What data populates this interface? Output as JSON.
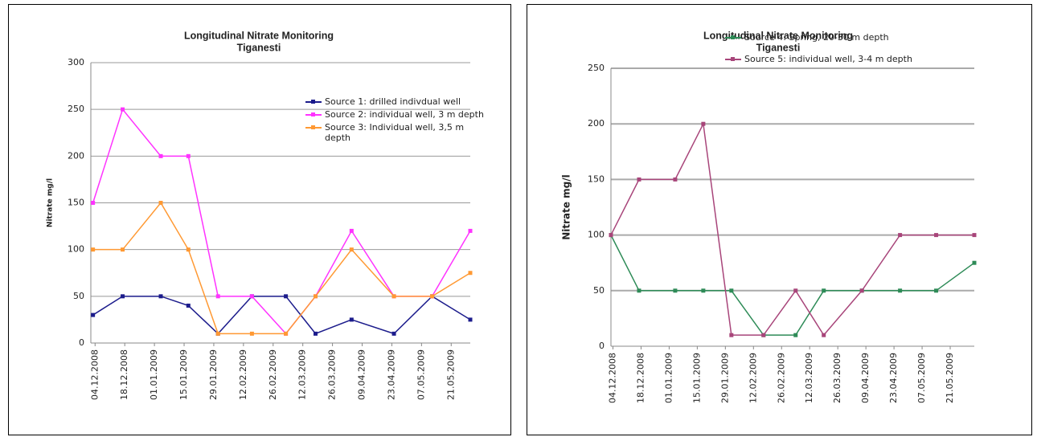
{
  "chart_data": [
    {
      "type": "line",
      "title": "Longitudinal Nitrate Monitoring",
      "subtitle": "Tiganesti",
      "y_label": "Nitrate mg/l",
      "x": [
        "03.12.2008",
        "17.12.2008",
        "04.01.2009",
        "17.01.2009",
        "31.01.2009",
        "16.02.2009",
        "04.03.2009",
        "18.03.2009",
        "04.04.2009",
        "24.04.2009",
        "12.05.2009",
        "30.05.2009"
      ],
      "xlim": [
        "02.12.2008",
        "30.05.2009"
      ],
      "xticks": [
        "04.12.2008",
        "18.12.2008",
        "01.01.2009",
        "15.01.2009",
        "29.01.2009",
        "12.02.2009",
        "26.02.2009",
        "12.03.2009",
        "26.03.2009",
        "09.04.2009",
        "23.04.2009",
        "07.05.2009",
        "21.05.2009"
      ],
      "ylim": [
        0,
        300
      ],
      "yticks": [
        0,
        50,
        100,
        150,
        200,
        250,
        300
      ],
      "grid": true,
      "series": [
        {
          "name": "Source 1: drilled indivdual well",
          "color": "#1c1c8c",
          "values": [
            30,
            50,
            50,
            40,
            10,
            50,
            50,
            10,
            25,
            10,
            50,
            25
          ]
        },
        {
          "name": "Source 2: individual well, 3 m depth",
          "color": "#ff33ff",
          "values": [
            150,
            250,
            200,
            200,
            50,
            50,
            10,
            50,
            120,
            50,
            50,
            120
          ]
        },
        {
          "name": "Source 3: Individual well, 3,5 m depth",
          "color": "#ff9933",
          "values": [
            100,
            100,
            150,
            100,
            10,
            10,
            10,
            50,
            100,
            50,
            50,
            75
          ]
        }
      ]
    },
    {
      "type": "line",
      "title": "Longitudinal Nitrate Monitoring",
      "subtitle": "Tiganesti",
      "y_label": "Nitrate mg/l",
      "x": [
        "03.12.2008",
        "17.12.2008",
        "04.01.2009",
        "18.01.2009",
        "01.02.2009",
        "17.02.2009",
        "05.03.2009",
        "19.03.2009",
        "07.04.2009",
        "26.04.2009",
        "14.05.2009",
        "02.06.2009"
      ],
      "xlim": [
        "03.12.2008",
        "02.06.2009"
      ],
      "xticks": [
        "04.12.2008",
        "18.12.2008",
        "01.01.2009",
        "15.01.2009",
        "29.01.2009",
        "12.02.2009",
        "26.02.2009",
        "12.03.2009",
        "26.03.2009",
        "09.04.2009",
        "23.04.2009",
        "07.05.2009",
        "21.05.2009"
      ],
      "ylim": [
        0,
        250
      ],
      "yticks": [
        0,
        50,
        100,
        150,
        200,
        250
      ],
      "grid": true,
      "series": [
        {
          "name": "Source 4: Spring, 20-30 m depth",
          "color": "#2e8b57",
          "values": [
            100,
            50,
            50,
            50,
            50,
            10,
            10,
            50,
            50,
            50,
            50,
            75
          ]
        },
        {
          "name": "Source 5: individual well, 3-4 m depth",
          "color": "#a8457a",
          "values": [
            100,
            150,
            150,
            200,
            10,
            10,
            50,
            10,
            50,
            100,
            100,
            100
          ]
        }
      ]
    }
  ]
}
